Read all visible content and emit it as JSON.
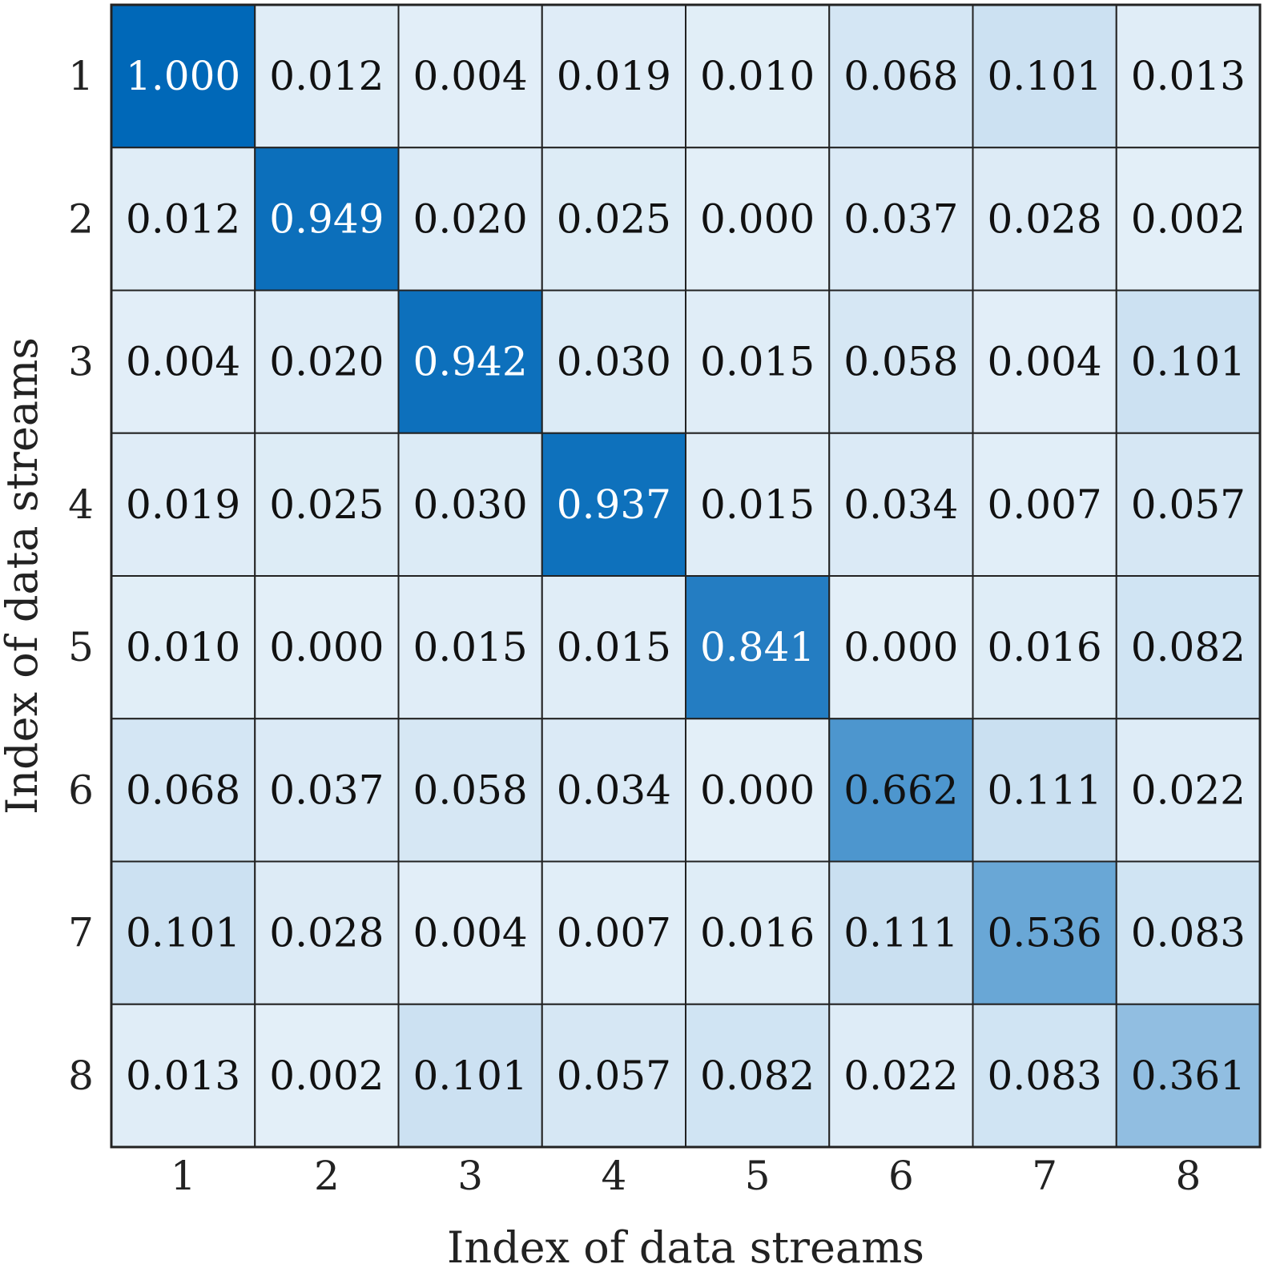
{
  "chart_data": {
    "type": "heatmap",
    "xlabel": "Index of data streams",
    "ylabel": "Index of data streams",
    "x_categories": [
      "1",
      "2",
      "3",
      "4",
      "5",
      "6",
      "7",
      "8"
    ],
    "y_categories": [
      "1",
      "2",
      "3",
      "4",
      "5",
      "6",
      "7",
      "8"
    ],
    "value_range": [
      0,
      1
    ],
    "colormap": {
      "low": "#e3eff8",
      "high": "#0068b8"
    },
    "values": [
      [
        1.0,
        0.012,
        0.004,
        0.019,
        0.01,
        0.068,
        0.101,
        0.013
      ],
      [
        0.012,
        0.949,
        0.02,
        0.025,
        0.0,
        0.037,
        0.028,
        0.002
      ],
      [
        0.004,
        0.02,
        0.942,
        0.03,
        0.015,
        0.058,
        0.004,
        0.101
      ],
      [
        0.019,
        0.025,
        0.03,
        0.937,
        0.015,
        0.034,
        0.007,
        0.057
      ],
      [
        0.01,
        0.0,
        0.015,
        0.015,
        0.841,
        0.0,
        0.016,
        0.082
      ],
      [
        0.068,
        0.037,
        0.058,
        0.034,
        0.0,
        0.662,
        0.111,
        0.022
      ],
      [
        0.101,
        0.028,
        0.004,
        0.007,
        0.016,
        0.111,
        0.536,
        0.083
      ],
      [
        0.013,
        0.002,
        0.101,
        0.057,
        0.082,
        0.022,
        0.083,
        0.361
      ]
    ],
    "labels": [
      [
        "1.000",
        "0.012",
        "0.004",
        "0.019",
        "0.010",
        "0.068",
        "0.101",
        "0.013"
      ],
      [
        "0.012",
        "0.949",
        "0.020",
        "0.025",
        "0.000",
        "0.037",
        "0.028",
        "0.002"
      ],
      [
        "0.004",
        "0.020",
        "0.942",
        "0.030",
        "0.015",
        "0.058",
        "0.004",
        "0.101"
      ],
      [
        "0.019",
        "0.025",
        "0.030",
        "0.937",
        "0.015",
        "0.034",
        "0.007",
        "0.057"
      ],
      [
        "0.010",
        "0.000",
        "0.015",
        "0.015",
        "0.841",
        "0.000",
        "0.016",
        "0.082"
      ],
      [
        "0.068",
        "0.037",
        "0.058",
        "0.034",
        "0.000",
        "0.662",
        "0.111",
        "0.022"
      ],
      [
        "0.101",
        "0.028",
        "0.004",
        "0.007",
        "0.016",
        "0.111",
        "0.536",
        "0.083"
      ],
      [
        "0.013",
        "0.002",
        "0.101",
        "0.057",
        "0.082",
        "0.022",
        "0.083",
        "0.361"
      ]
    ],
    "grid": true,
    "legend": "none"
  }
}
